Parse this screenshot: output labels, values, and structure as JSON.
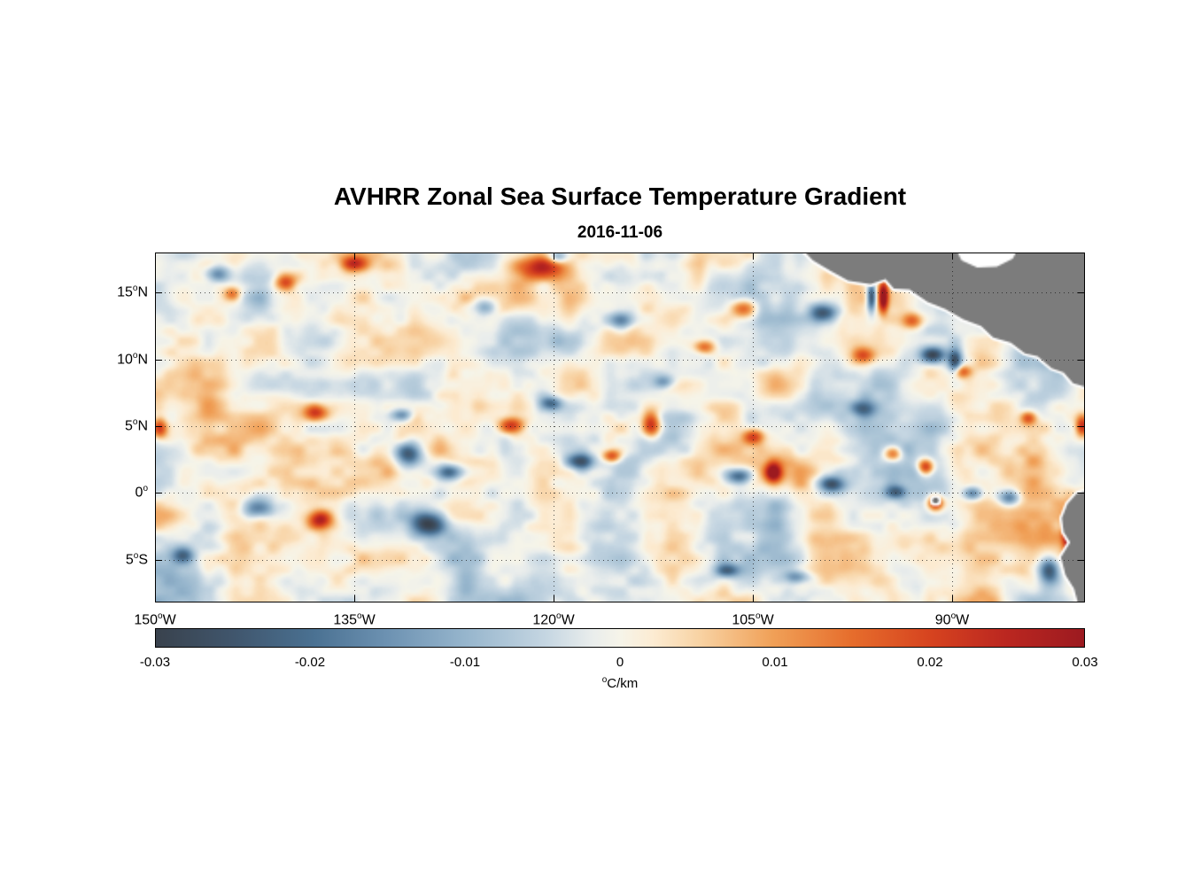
{
  "title": "AVHRR Zonal Sea Surface Temperature Gradient",
  "subtitle": "2016-11-06",
  "chart_data": {
    "type": "heatmap",
    "description": "AVHRR zonal sea surface temperature gradient (dT/dx) over the eastern tropical Pacific, with gray land mask for Mexico, Central America and South America",
    "lon_range": [
      -150,
      -80
    ],
    "lat_range": [
      -8.2,
      18
    ],
    "grid": "dotted",
    "x_ticks": [
      {
        "lon": -150,
        "pre": "150",
        "deg": "o",
        "post": "W",
        "grid": false
      },
      {
        "lon": -135,
        "pre": "135",
        "deg": "o",
        "post": "W",
        "grid": true
      },
      {
        "lon": -120,
        "pre": "120",
        "deg": "o",
        "post": "W",
        "grid": true
      },
      {
        "lon": -105,
        "pre": "105",
        "deg": "o",
        "post": "W",
        "grid": true
      },
      {
        "lon": -90,
        "pre": "90",
        "deg": "o",
        "post": "W",
        "grid": true
      }
    ],
    "y_ticks": [
      {
        "lat": 15,
        "pre": "15",
        "deg": "o",
        "post": "N",
        "grid": true
      },
      {
        "lat": 10,
        "pre": "10",
        "deg": "o",
        "post": "N",
        "grid": true
      },
      {
        "lat": 5,
        "pre": "5",
        "deg": "o",
        "post": "N",
        "grid": true
      },
      {
        "lat": 0,
        "pre": "0",
        "deg": "o",
        "post": "",
        "grid": true
      },
      {
        "lat": -5,
        "pre": "5",
        "deg": "o",
        "post": "S",
        "grid": true
      }
    ],
    "colorbar": {
      "min": -0.03,
      "max": 0.03,
      "ticks": [
        "-0.03",
        "-0.02",
        "-0.01",
        "0",
        "0.01",
        "0.02",
        "0.03"
      ],
      "unit_deg": "o",
      "unit": "C/km",
      "stops": [
        [
          0.0,
          "#39424d"
        ],
        [
          0.085,
          "#40566d"
        ],
        [
          0.17,
          "#4a7192"
        ],
        [
          0.25,
          "#6d92b2"
        ],
        [
          0.335,
          "#97b6cd"
        ],
        [
          0.42,
          "#c5d6e2"
        ],
        [
          0.47,
          "#e9edec"
        ],
        [
          0.5,
          "#f6f4e9"
        ],
        [
          0.535,
          "#fcecd3"
        ],
        [
          0.585,
          "#f8d3a4"
        ],
        [
          0.665,
          "#f0a057"
        ],
        [
          0.75,
          "#e66d2c"
        ],
        [
          0.835,
          "#d6431f"
        ],
        [
          0.915,
          "#bb2720"
        ],
        [
          1.0,
          "#9c1a20"
        ]
      ]
    },
    "field": {
      "seed": 11,
      "background_amp": 0.014
    },
    "features": [
      [
        -135.1,
        17.3,
        0.022,
        1.0,
        0.6
      ],
      [
        -121.0,
        17.0,
        0.028,
        1.6,
        0.9
      ],
      [
        -119.8,
        17.8,
        -0.02,
        0.7,
        0.5
      ],
      [
        -145.5,
        16.5,
        -0.018,
        0.9,
        0.6
      ],
      [
        -140.3,
        15.9,
        0.02,
        0.8,
        0.6
      ],
      [
        -144.3,
        15.0,
        0.015,
        0.6,
        0.5
      ],
      [
        -105.7,
        13.9,
        0.024,
        1.0,
        0.7
      ],
      [
        -99.7,
        13.6,
        -0.028,
        1.0,
        0.7
      ],
      [
        -95.2,
        14.8,
        0.035,
        0.35,
        1.1
      ],
      [
        -96.1,
        14.8,
        -0.035,
        0.35,
        1.1
      ],
      [
        -93.0,
        13.0,
        0.02,
        0.8,
        0.6
      ],
      [
        -96.7,
        10.4,
        0.02,
        0.8,
        0.6
      ],
      [
        -91.5,
        10.4,
        -0.03,
        0.9,
        0.6
      ],
      [
        -89.3,
        9.2,
        0.02,
        0.7,
        0.5
      ],
      [
        -149.8,
        4.9,
        0.028,
        0.6,
        0.8
      ],
      [
        -138.0,
        6.1,
        0.022,
        0.9,
        0.6
      ],
      [
        -131.5,
        5.9,
        -0.02,
        0.8,
        0.5
      ],
      [
        -123.3,
        5.1,
        0.026,
        1.0,
        0.6
      ],
      [
        -112.7,
        5.2,
        0.03,
        0.7,
        1.0
      ],
      [
        -118.0,
        2.4,
        -0.028,
        1.0,
        0.6
      ],
      [
        -120.3,
        6.8,
        -0.02,
        0.8,
        0.5
      ],
      [
        -131.0,
        3.0,
        -0.03,
        1.0,
        0.9
      ],
      [
        -128.0,
        1.6,
        -0.025,
        1.0,
        0.6
      ],
      [
        -105.0,
        4.3,
        0.024,
        0.8,
        0.6
      ],
      [
        -106.1,
        1.3,
        -0.028,
        1.0,
        0.6
      ],
      [
        -103.5,
        1.6,
        0.032,
        0.6,
        0.7
      ],
      [
        -99.0,
        0.7,
        -0.028,
        1.0,
        0.6
      ],
      [
        -94.5,
        3.0,
        0.026,
        0.7,
        0.6
      ],
      [
        -92.0,
        2.0,
        0.03,
        0.6,
        0.6
      ],
      [
        -91.3,
        -0.7,
        0.032,
        0.6,
        0.6
      ],
      [
        -88.5,
        0.0,
        -0.022,
        0.7,
        0.5
      ],
      [
        -85.7,
        -0.3,
        -0.024,
        0.8,
        0.6
      ],
      [
        -142.3,
        -1.1,
        -0.028,
        1.2,
        0.8
      ],
      [
        -137.7,
        -2.0,
        0.028,
        0.9,
        0.7
      ],
      [
        -129.5,
        -2.3,
        -0.032,
        1.3,
        0.9
      ],
      [
        -148.0,
        -4.7,
        -0.02,
        0.8,
        0.6
      ],
      [
        -107.0,
        -5.8,
        -0.02,
        0.9,
        0.5
      ],
      [
        -101.7,
        -6.3,
        -0.018,
        1.0,
        0.5
      ],
      [
        -82.7,
        -5.8,
        -0.03,
        0.8,
        1.0
      ],
      [
        -81.2,
        -2.9,
        0.035,
        0.45,
        1.6
      ],
      [
        -80.2,
        5.1,
        0.026,
        0.5,
        0.8
      ],
      [
        -84.3,
        5.7,
        0.02,
        0.6,
        0.5
      ],
      [
        -89.8,
        9.9,
        -0.028,
        0.5,
        0.9
      ],
      [
        -115.7,
        2.8,
        0.024,
        0.7,
        0.5
      ],
      [
        -125.3,
        14.0,
        -0.018,
        0.9,
        0.6
      ],
      [
        -115.0,
        13.0,
        -0.016,
        0.9,
        0.6
      ],
      [
        -108.7,
        11.0,
        0.018,
        0.8,
        0.5
      ],
      [
        -111.7,
        8.4,
        -0.016,
        0.8,
        0.5
      ],
      [
        -96.7,
        6.4,
        -0.02,
        0.9,
        0.6
      ],
      [
        -94.3,
        0.1,
        -0.022,
        0.8,
        0.5
      ]
    ],
    "land_color": "#7c7c7c",
    "land": {
      "central_america": [
        [
          0.693,
          -0.02
        ],
        [
          0.708,
          0.02
        ],
        [
          0.727,
          0.051
        ],
        [
          0.746,
          0.078
        ],
        [
          0.77,
          0.089
        ],
        [
          0.786,
          0.073
        ],
        [
          0.795,
          0.101
        ],
        [
          0.812,
          0.104
        ],
        [
          0.831,
          0.139
        ],
        [
          0.85,
          0.159
        ],
        [
          0.87,
          0.19
        ],
        [
          0.889,
          0.208
        ],
        [
          0.902,
          0.241
        ],
        [
          0.921,
          0.256
        ],
        [
          0.936,
          0.286
        ],
        [
          0.95,
          0.296
        ],
        [
          0.965,
          0.329
        ],
        [
          0.978,
          0.342
        ],
        [
          0.988,
          0.372
        ],
        [
          1.02,
          0.4
        ],
        [
          1.02,
          -0.02
        ]
      ],
      "caribbean_mask": [
        [
          0.86,
          -0.02
        ],
        [
          0.868,
          0.02
        ],
        [
          0.885,
          0.04
        ],
        [
          0.906,
          0.038
        ],
        [
          0.923,
          0.015
        ],
        [
          0.93,
          -0.02
        ]
      ],
      "south_america": [
        [
          1.02,
          0.67
        ],
        [
          0.992,
          0.69
        ],
        [
          0.982,
          0.72
        ],
        [
          0.976,
          0.76
        ],
        [
          0.978,
          0.8
        ],
        [
          0.985,
          0.83
        ],
        [
          0.975,
          0.873
        ],
        [
          0.98,
          0.924
        ],
        [
          0.989,
          0.962
        ],
        [
          0.995,
          1.02
        ],
        [
          1.02,
          1.02
        ]
      ],
      "galapagos": {
        "u": 0.84,
        "v": 0.709
      }
    }
  }
}
